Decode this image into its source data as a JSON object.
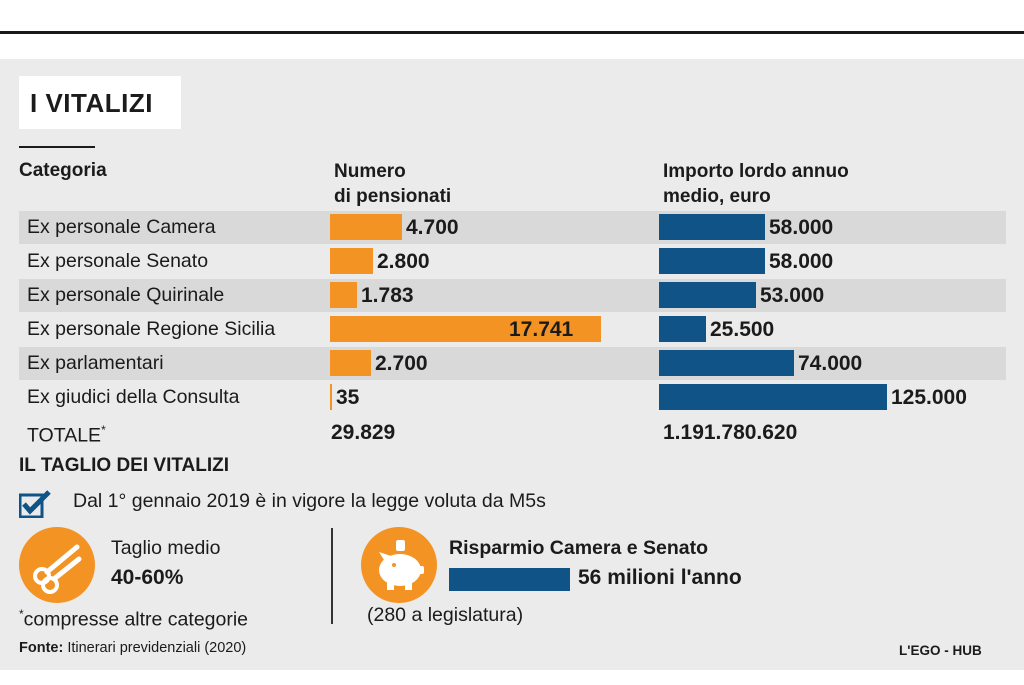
{
  "title": "I VITALIZI",
  "columns": {
    "category": "Categoria",
    "count_line1": "Numero",
    "count_line2": "di pensionati",
    "amount_line1": "Importo lordo annuo",
    "amount_line2": "medio, euro"
  },
  "chart_data": {
    "type": "bar",
    "orientation": "horizontal",
    "categories": [
      "Ex personale Camera",
      "Ex personale Senato",
      "Ex personale Quirinale",
      "Ex personale Regione Sicilia",
      "Ex parlamentari",
      "Ex giudici della Consulta"
    ],
    "series": [
      {
        "name": "Numero di pensionati",
        "values": [
          4700,
          2800,
          1783,
          17741,
          2700,
          35
        ],
        "labels": [
          "4.700",
          "2.800",
          "1.783",
          "17.741",
          "2.700",
          "35"
        ],
        "color": "#f39324"
      },
      {
        "name": "Importo lordo annuo medio, euro",
        "values": [
          58000,
          58000,
          53000,
          25500,
          74000,
          125000
        ],
        "labels": [
          "58.000",
          "58.000",
          "53.000",
          "25.500",
          "74.000",
          "125.000"
        ],
        "color": "#0f5387"
      }
    ],
    "total": {
      "label": "TOTALE",
      "marker": "*",
      "count": "29.829",
      "amount": "1.191.780.620"
    }
  },
  "cut": {
    "heading": "IL TAGLIO DEI VITALIZI",
    "check_text": "Dal 1° gennaio 2019 è in vigore la legge voluta da M5s",
    "average_label": "Taglio medio",
    "average_value": "40-60%",
    "footnote_marker": "*",
    "footnote": "compresse altre categorie",
    "savings_label": "Risparmio Camera e Senato",
    "savings_value": "56 milioni l'anno",
    "savings_note": "(280 a legislatura)"
  },
  "source": {
    "label": "Fonte:",
    "text": " Itinerari previdenziali (2020)"
  },
  "credit": "L'EGO - HUB",
  "colors": {
    "orange": "#f39324",
    "blue": "#0f5387",
    "panel": "#ebebeb",
    "stripe": "#d9d9d9"
  },
  "icons": {
    "check": "checkbox-checked-icon",
    "cut": "scissors-icon",
    "savings": "piggy-bank-icon"
  }
}
